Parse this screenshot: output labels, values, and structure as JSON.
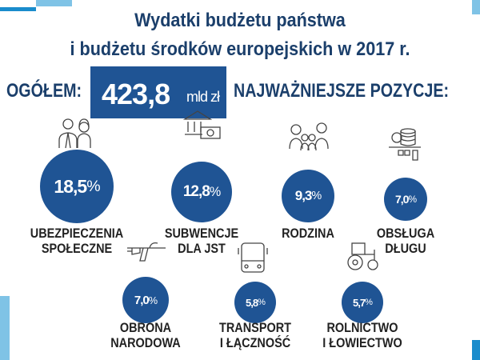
{
  "title_line1": "Wydatki budżetu państwa",
  "title_line2": "i budżetu środków europejskich w 2017 r.",
  "total_label": "OGÓŁEM:",
  "total_value": "423,8",
  "total_unit": "mld zł",
  "positions_label": "NAJWAŻNIEJSZE POZYCJE:",
  "colors": {
    "primary": "#1f5494",
    "title": "#1b3f6b",
    "accent_light": "#7fc3e6",
    "accent_dark": "#1a8ccc"
  },
  "chart_data": {
    "type": "bubble",
    "unit": "%",
    "categories": [
      "UBEZPIECZENIA SPOŁECZNE",
      "SUBWENCJE DLA JST",
      "RODZINA",
      "OBSŁUGA DŁUGU",
      "OBRONA NARODOWA",
      "TRANSPORT I ŁĄCZNOŚĆ",
      "ROLNICTWO I ŁOWIECTWO"
    ],
    "values": [
      18.5,
      12.8,
      9.3,
      7.0,
      7.0,
      5.8,
      5.7
    ],
    "items": [
      {
        "value_text": "18,5",
        "pct": "%",
        "line1": "UBEZPIECZENIA",
        "line2": "SPOŁECZNE",
        "icon": "people-icon"
      },
      {
        "value_text": "12,8",
        "pct": "%",
        "line1": "SUBWENCJE",
        "line2": "DLA JST",
        "icon": "bank-money-icon"
      },
      {
        "value_text": "9,3",
        "pct": "%",
        "line1": "RODZINA",
        "line2": "",
        "icon": "family-icon"
      },
      {
        "value_text": "7,0",
        "pct": "%",
        "line1": "OBSŁUGA",
        "line2": "DŁUGU",
        "icon": "coins-debt-icon"
      },
      {
        "value_text": "7,0",
        "pct": "%",
        "line1": "OBRONA",
        "line2": "NARODOWA",
        "icon": "rifle-icon"
      },
      {
        "value_text": "5,8",
        "pct": "%",
        "line1": "TRANSPORT",
        "line2": "I ŁĄCZNOŚĆ",
        "icon": "bus-icon"
      },
      {
        "value_text": "5,7",
        "pct": "%",
        "line1": "ROLNICTWO",
        "line2": "I ŁOWIECTWO",
        "icon": "tractor-icon"
      }
    ]
  }
}
